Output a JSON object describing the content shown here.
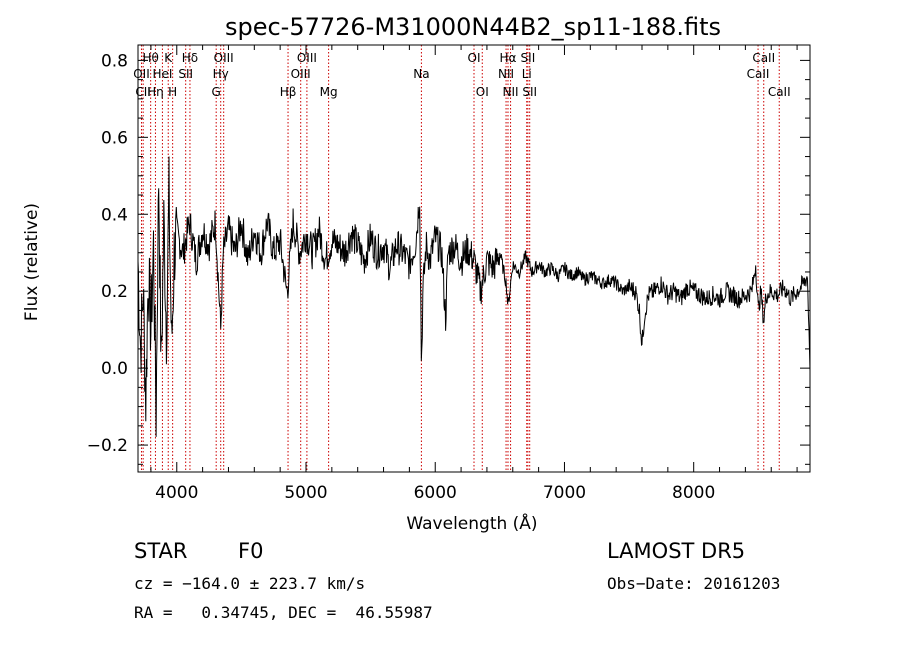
{
  "chart_data": {
    "type": "line",
    "title": "spec-57726-M31000N44B2_sp11-188.fits",
    "xlabel": "Wavelength (Å)",
    "ylabel": "Flux (relative)",
    "xlim": [
      3700,
      8900
    ],
    "ylim": [
      -0.27,
      0.84
    ],
    "x_ticks": [
      4000,
      5000,
      6000,
      7000,
      8000
    ],
    "x_tick_labels": [
      "4000",
      "5000",
      "6000",
      "7000",
      "8000"
    ],
    "y_ticks": [
      -0.2,
      0.0,
      0.2,
      0.4,
      0.6,
      0.8
    ],
    "y_tick_labels": [
      "−0.2",
      "0.0",
      "0.2",
      "0.4",
      "0.6",
      "0.8"
    ],
    "grid": false,
    "legend": "none",
    "line_color": "#000000",
    "marker_line_color": "#cc0000",
    "spectrum": {
      "x": [
        3700,
        3720,
        3740,
        3760,
        3780,
        3800,
        3820,
        3840,
        3860,
        3880,
        3900,
        3920,
        3940,
        3960,
        3980,
        4000,
        4050,
        4100,
        4150,
        4200,
        4250,
        4300,
        4340,
        4360,
        4400,
        4450,
        4500,
        4550,
        4600,
        4650,
        4700,
        4750,
        4800,
        4850,
        4861,
        4900,
        4950,
        5000,
        5050,
        5100,
        5150,
        5200,
        5250,
        5300,
        5350,
        5400,
        5450,
        5500,
        5550,
        5600,
        5650,
        5700,
        5750,
        5800,
        5850,
        5880,
        5893,
        5905,
        5930,
        5960,
        6000,
        6050,
        6080,
        6100,
        6150,
        6200,
        6250,
        6300,
        6350,
        6400,
        6450,
        6500,
        6550,
        6563,
        6600,
        6650,
        6700,
        6750,
        6800,
        6850,
        6900,
        6950,
        7000,
        7050,
        7100,
        7150,
        7200,
        7250,
        7300,
        7350,
        7400,
        7450,
        7500,
        7550,
        7580,
        7600,
        7620,
        7650,
        7700,
        7750,
        7800,
        7850,
        7900,
        7950,
        8000,
        8050,
        8100,
        8150,
        8200,
        8250,
        8300,
        8350,
        8400,
        8450,
        8480,
        8500,
        8520,
        8542,
        8560,
        8600,
        8650,
        8700,
        8750,
        8800,
        8850,
        8880,
        8900
      ],
      "y": [
        0.28,
        0.05,
        0.2,
        -0.08,
        0.25,
        0.1,
        0.32,
        -0.12,
        0.5,
        0.0,
        0.38,
        0.1,
        0.45,
        0.05,
        0.3,
        0.35,
        0.3,
        0.38,
        0.28,
        0.36,
        0.32,
        0.38,
        0.1,
        0.3,
        0.36,
        0.3,
        0.38,
        0.28,
        0.36,
        0.3,
        0.38,
        0.3,
        0.33,
        0.2,
        0.22,
        0.38,
        0.3,
        0.35,
        0.3,
        0.36,
        0.28,
        0.33,
        0.32,
        0.3,
        0.35,
        0.32,
        0.28,
        0.34,
        0.3,
        0.32,
        0.26,
        0.32,
        0.3,
        0.27,
        0.33,
        0.45,
        0.0,
        0.2,
        0.32,
        0.28,
        0.34,
        0.3,
        0.13,
        0.3,
        0.32,
        0.28,
        0.31,
        0.28,
        0.2,
        0.28,
        0.26,
        0.3,
        0.22,
        0.16,
        0.27,
        0.25,
        0.29,
        0.25,
        0.27,
        0.25,
        0.26,
        0.24,
        0.26,
        0.24,
        0.25,
        0.23,
        0.24,
        0.23,
        0.22,
        0.23,
        0.22,
        0.2,
        0.21,
        0.2,
        0.15,
        0.06,
        0.14,
        0.19,
        0.2,
        0.22,
        0.19,
        0.2,
        0.18,
        0.21,
        0.2,
        0.19,
        0.18,
        0.19,
        0.18,
        0.2,
        0.19,
        0.18,
        0.19,
        0.2,
        0.27,
        0.15,
        0.2,
        0.12,
        0.19,
        0.2,
        0.19,
        0.21,
        0.18,
        0.2,
        0.22,
        0.24,
        0.01
      ]
    },
    "line_markers": [
      {
        "label": "Hθ",
        "x": 3798,
        "row": 1
      },
      {
        "label": "OII",
        "x": 3727,
        "row": 2
      },
      {
        "label": "CII",
        "x": 3740,
        "row": 3
      },
      {
        "label": "Hη",
        "x": 3835,
        "row": 3
      },
      {
        "label": "HeI",
        "x": 3889,
        "row": 2
      },
      {
        "label": "K",
        "x": 3934,
        "row": 1
      },
      {
        "label": "H",
        "x": 3968,
        "row": 3
      },
      {
        "label": "Hδ",
        "x": 4102,
        "row": 1
      },
      {
        "label": "SII",
        "x": 4069,
        "row": 2
      },
      {
        "label": "OIII",
        "x": 4363,
        "row": 1
      },
      {
        "label": "Hγ",
        "x": 4340,
        "row": 2
      },
      {
        "label": "G",
        "x": 4305,
        "row": 3
      },
      {
        "label": "Hβ",
        "x": 4861,
        "row": 3
      },
      {
        "label": "OIII",
        "x": 5007,
        "row": 1
      },
      {
        "label": "OIII",
        "x": 4959,
        "row": 2
      },
      {
        "label": "Mg",
        "x": 5175,
        "row": 3
      },
      {
        "label": "Na",
        "x": 5893,
        "row": 2
      },
      {
        "label": "OI",
        "x": 6300,
        "row": 1
      },
      {
        "label": "OI",
        "x": 6364,
        "row": 3
      },
      {
        "label": "Hα",
        "x": 6563,
        "row": 1
      },
      {
        "label": "NII",
        "x": 6548,
        "row": 2
      },
      {
        "label": "NII",
        "x": 6583,
        "row": 3
      },
      {
        "label": "SII",
        "x": 6717,
        "row": 1
      },
      {
        "label": "Li",
        "x": 6708,
        "row": 2
      },
      {
        "label": "SII",
        "x": 6731,
        "row": 3
      },
      {
        "label": "CaII",
        "x": 8542,
        "row": 1
      },
      {
        "label": "CaII",
        "x": 8498,
        "row": 2
      },
      {
        "label": "CaII",
        "x": 8662,
        "row": 3
      }
    ]
  },
  "info": {
    "class_label": "STAR",
    "subclass_label": "F0",
    "survey": "LAMOST DR5",
    "cz_text": "cz = −164.0 ± 223.7 km/s",
    "obs_date": "Obs−Date: 20161203",
    "coords": "RA =   0.34745, DEC =  46.55987"
  }
}
